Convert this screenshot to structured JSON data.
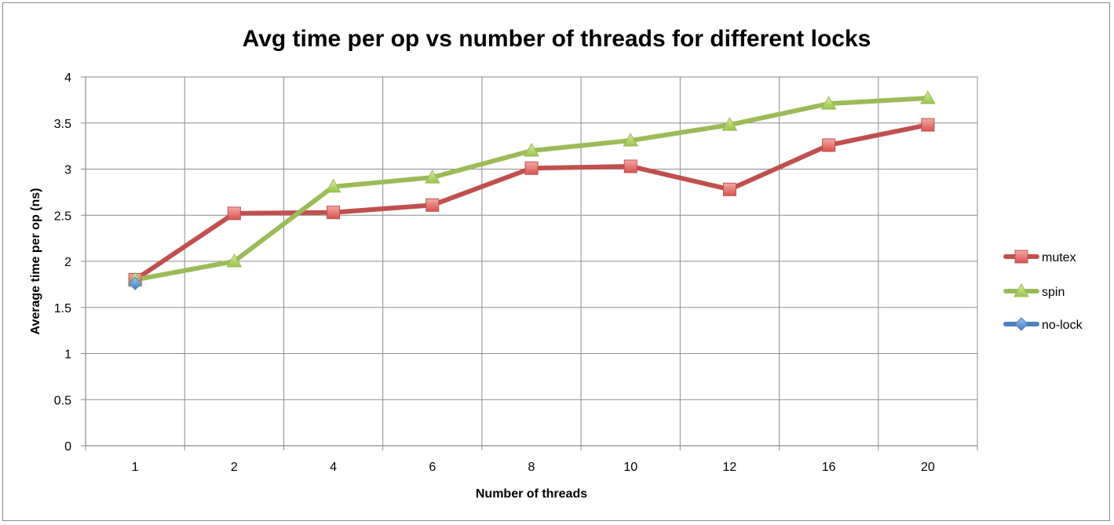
{
  "chart_data": {
    "type": "line",
    "title": "Avg time per op vs number of threads for different locks",
    "xlabel": "Number of threads",
    "ylabel": "Average time per op (ns)",
    "categories": [
      "1",
      "2",
      "4",
      "6",
      "8",
      "10",
      "12",
      "16",
      "20"
    ],
    "yticks": [
      "0",
      "0.5",
      "1",
      "1.5",
      "2",
      "2.5",
      "3",
      "3.5",
      "4"
    ],
    "ylim": [
      0,
      4
    ],
    "grid": true,
    "legend_position": "right",
    "series": [
      {
        "name": "mutex",
        "color": "#c0504d",
        "marker": "square",
        "values": [
          1.8,
          2.52,
          2.53,
          2.61,
          3.01,
          3.03,
          2.78,
          3.26,
          3.48
        ]
      },
      {
        "name": "spin",
        "color": "#9bbb59",
        "marker": "triangle",
        "values": [
          1.8,
          2.0,
          2.81,
          2.91,
          3.2,
          3.31,
          3.48,
          3.71,
          3.77
        ]
      },
      {
        "name": "no-lock",
        "color": "#4f81bd",
        "marker": "diamond",
        "values": [
          1.76,
          null,
          null,
          null,
          null,
          null,
          null,
          null,
          null
        ]
      }
    ]
  }
}
